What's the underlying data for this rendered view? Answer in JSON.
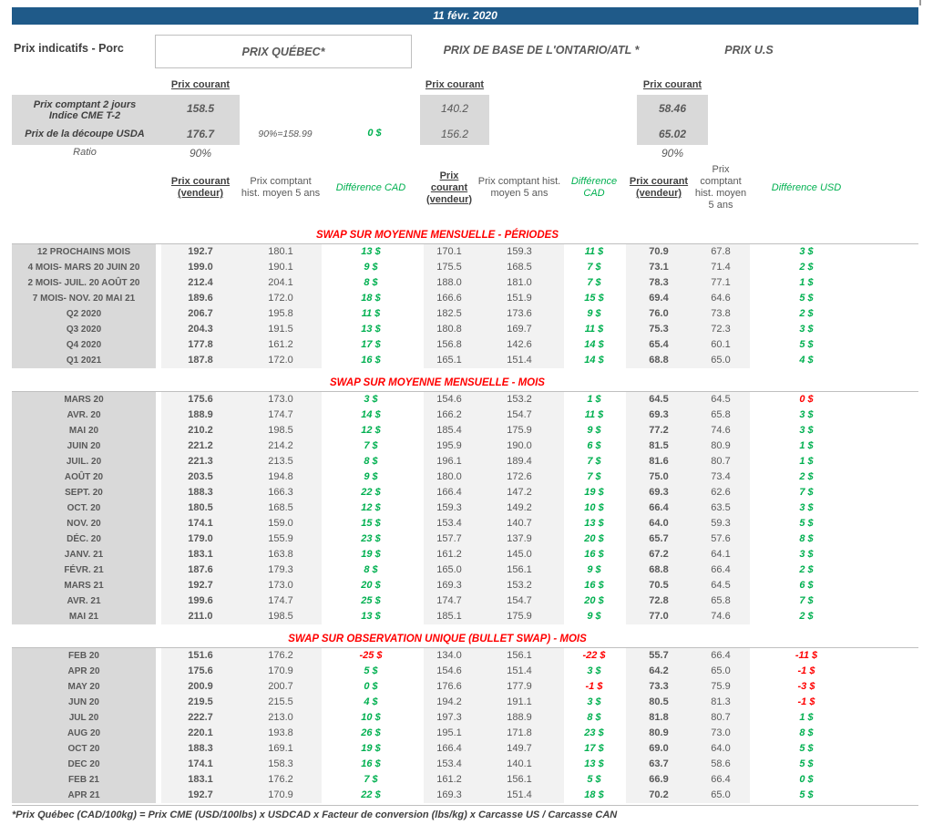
{
  "banner": {
    "date": "11 févr. 2020"
  },
  "page_title": "Prix indicatifs - Porc",
  "groups": {
    "quebec": {
      "title": "PRIX QUÉBEC*",
      "spot_label": "Prix courant"
    },
    "ontario": {
      "title": "PRIX DE BASE DE L'ONTARIO/ATL *",
      "spot_label": "Prix courant"
    },
    "us": {
      "title": "PRIX U.S",
      "spot_label": "Prix courant"
    }
  },
  "summary": {
    "row_cme": {
      "label": "Prix comptant 2 jours\nIndice CME T-2",
      "quebec": "158.5",
      "ontario": "140.2",
      "us": "58.46"
    },
    "row_usda": {
      "label": "Prix de la découpe USDA",
      "quebec": "176.7",
      "note": "90%=158.99",
      "diff": "0 $",
      "ontario": "156.2",
      "us": "65.02"
    },
    "row_ratio": {
      "label": "Ratio",
      "quebec": "90%",
      "us": "90%"
    }
  },
  "columns": {
    "current": "Prix courant (vendeur)",
    "hist": "Prix comptant hist. moyen 5 ans",
    "diff_cad": "Différence CAD",
    "diff_usd": "Différence USD"
  },
  "sections": [
    {
      "title": "SWAP SUR MOYENNE MENSUELLE - PÉRIODES",
      "rows": [
        {
          "label": "12 PROCHAINS MOIS",
          "v": [
            "192.7",
            "180.1",
            "13 $",
            "170.1",
            "159.3",
            "11 $",
            "70.9",
            "67.8",
            "3 $"
          ]
        },
        {
          "label": "4 MOIS- MARS 20 JUIN 20",
          "v": [
            "199.0",
            "190.1",
            "9 $",
            "175.5",
            "168.5",
            "7 $",
            "73.1",
            "71.4",
            "2 $"
          ]
        },
        {
          "label": "2 MOIS- JUIL. 20 AOÛT 20",
          "v": [
            "212.4",
            "204.1",
            "8 $",
            "188.0",
            "181.0",
            "7 $",
            "78.3",
            "77.1",
            "1 $"
          ]
        },
        {
          "label": "7 MOIS- NOV. 20 MAI 21",
          "v": [
            "189.6",
            "172.0",
            "18 $",
            "166.6",
            "151.9",
            "15 $",
            "69.4",
            "64.6",
            "5 $"
          ]
        },
        {
          "label": "Q2 2020",
          "v": [
            "206.7",
            "195.8",
            "11 $",
            "182.5",
            "173.6",
            "9 $",
            "76.0",
            "73.8",
            "2 $"
          ]
        },
        {
          "label": "Q3 2020",
          "v": [
            "204.3",
            "191.5",
            "13 $",
            "180.8",
            "169.7",
            "11 $",
            "75.3",
            "72.3",
            "3 $"
          ]
        },
        {
          "label": "Q4 2020",
          "v": [
            "177.8",
            "161.2",
            "17 $",
            "156.8",
            "142.6",
            "14 $",
            "65.4",
            "60.1",
            "5 $"
          ]
        },
        {
          "label": "Q1 2021",
          "v": [
            "187.8",
            "172.0",
            "16 $",
            "165.1",
            "151.4",
            "14 $",
            "68.8",
            "65.0",
            "4 $"
          ]
        }
      ]
    },
    {
      "title": "SWAP SUR MOYENNE MENSUELLE - MOIS",
      "rows": [
        {
          "label": "MARS 20",
          "v": [
            "175.6",
            "173.0",
            "3 $",
            "154.6",
            "153.2",
            "1 $",
            "64.5",
            "64.5",
            "0 $"
          ],
          "dc": [
            "pos",
            "pos",
            "neg"
          ]
        },
        {
          "label": "AVR. 20",
          "v": [
            "188.9",
            "174.7",
            "14 $",
            "166.2",
            "154.7",
            "11 $",
            "69.3",
            "65.8",
            "3 $"
          ]
        },
        {
          "label": "MAI 20",
          "v": [
            "210.2",
            "198.5",
            "12 $",
            "185.4",
            "175.9",
            "9 $",
            "77.2",
            "74.6",
            "3 $"
          ]
        },
        {
          "label": "JUIN 20",
          "v": [
            "221.2",
            "214.2",
            "7 $",
            "195.9",
            "190.0",
            "6 $",
            "81.5",
            "80.9",
            "1 $"
          ]
        },
        {
          "label": "JUIL. 20",
          "v": [
            "221.3",
            "213.5",
            "8 $",
            "196.1",
            "189.4",
            "7 $",
            "81.6",
            "80.7",
            "1 $"
          ]
        },
        {
          "label": "AOÛT 20",
          "v": [
            "203.5",
            "194.8",
            "9 $",
            "180.0",
            "172.6",
            "7 $",
            "75.0",
            "73.4",
            "2 $"
          ]
        },
        {
          "label": "SEPT. 20",
          "v": [
            "188.3",
            "166.3",
            "22 $",
            "166.4",
            "147.2",
            "19 $",
            "69.3",
            "62.6",
            "7 $"
          ]
        },
        {
          "label": "OCT. 20",
          "v": [
            "180.5",
            "168.5",
            "12 $",
            "159.3",
            "149.2",
            "10 $",
            "66.4",
            "63.5",
            "3 $"
          ]
        },
        {
          "label": "NOV. 20",
          "v": [
            "174.1",
            "159.0",
            "15 $",
            "153.4",
            "140.7",
            "13 $",
            "64.0",
            "59.3",
            "5 $"
          ]
        },
        {
          "label": "DÉC. 20",
          "v": [
            "179.0",
            "155.9",
            "23 $",
            "157.7",
            "137.9",
            "20 $",
            "65.7",
            "57.6",
            "8 $"
          ]
        },
        {
          "label": "JANV. 21",
          "v": [
            "183.1",
            "163.8",
            "19 $",
            "161.2",
            "145.0",
            "16 $",
            "67.2",
            "64.1",
            "3 $"
          ]
        },
        {
          "label": "FÉVR. 21",
          "v": [
            "187.6",
            "179.3",
            "8 $",
            "165.0",
            "156.1",
            "9 $",
            "68.8",
            "66.4",
            "2 $"
          ]
        },
        {
          "label": "MARS 21",
          "v": [
            "192.7",
            "173.0",
            "20 $",
            "169.3",
            "153.2",
            "16 $",
            "70.5",
            "64.5",
            "6 $"
          ]
        },
        {
          "label": "AVR. 21",
          "v": [
            "199.6",
            "174.7",
            "25 $",
            "174.7",
            "154.7",
            "20 $",
            "72.8",
            "65.8",
            "7 $"
          ]
        },
        {
          "label": "MAI 21",
          "v": [
            "211.0",
            "198.5",
            "13 $",
            "185.1",
            "175.9",
            "9 $",
            "77.0",
            "74.6",
            "2 $"
          ]
        }
      ]
    },
    {
      "title": "SWAP SUR OBSERVATION UNIQUE (BULLET SWAP) - MOIS",
      "rows": [
        {
          "label": "FEB 20",
          "v": [
            "151.6",
            "176.2",
            "-25 $",
            "134.0",
            "156.1",
            "-22 $",
            "55.7",
            "66.4",
            "-11 $"
          ]
        },
        {
          "label": "APR 20",
          "v": [
            "175.6",
            "170.9",
            "5 $",
            "154.6",
            "151.4",
            "3 $",
            "64.2",
            "65.0",
            "-1 $"
          ]
        },
        {
          "label": "MAY 20",
          "v": [
            "200.9",
            "200.7",
            "0 $",
            "176.6",
            "177.9",
            "-1 $",
            "73.3",
            "75.9",
            "-3 $"
          ]
        },
        {
          "label": "JUN 20",
          "v": [
            "219.5",
            "215.5",
            "4 $",
            "194.2",
            "191.1",
            "3 $",
            "80.5",
            "81.3",
            "-1 $"
          ]
        },
        {
          "label": "JUL 20",
          "v": [
            "222.7",
            "213.0",
            "10 $",
            "197.3",
            "188.9",
            "8 $",
            "81.8",
            "80.7",
            "1 $"
          ]
        },
        {
          "label": "AUG 20",
          "v": [
            "220.1",
            "193.8",
            "26 $",
            "195.1",
            "171.8",
            "23 $",
            "80.9",
            "73.0",
            "8 $"
          ]
        },
        {
          "label": "OCT 20",
          "v": [
            "188.3",
            "169.1",
            "19 $",
            "166.4",
            "149.7",
            "17 $",
            "69.0",
            "64.0",
            "5 $"
          ]
        },
        {
          "label": "DEC 20",
          "v": [
            "174.1",
            "158.3",
            "16 $",
            "153.4",
            "140.1",
            "13 $",
            "63.7",
            "58.6",
            "5 $"
          ]
        },
        {
          "label": "FEB 21",
          "v": [
            "183.1",
            "176.2",
            "7 $",
            "161.2",
            "156.1",
            "5 $",
            "66.9",
            "66.4",
            "0 $"
          ]
        },
        {
          "label": "APR 21",
          "v": [
            "192.7",
            "170.9",
            "22 $",
            "169.3",
            "151.4",
            "18 $",
            "70.2",
            "65.0",
            "5 $"
          ]
        }
      ]
    }
  ],
  "footnote": "*Prix Québec (CAD/100kg) = Prix CME (USD/100lbs) x USDCAD x Facteur de conversion (lbs/kg) x Carcasse US / Carcasse CAN",
  "colors": {
    "banner_blue": "#1F5A89",
    "positive_green": "#00B050",
    "negative_red": "#FF0000",
    "section_title_red": "#FF0000",
    "label_gray": "#D9D9D9",
    "band_gray": "#F2F2F2"
  }
}
